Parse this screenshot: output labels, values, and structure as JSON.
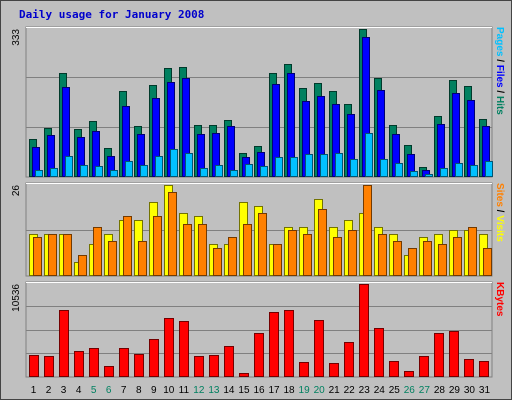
{
  "chart_data": {
    "type": "bar",
    "title": "Daily usage for January 2008",
    "categories": [
      "1",
      "2",
      "3",
      "4",
      "5",
      "6",
      "7",
      "8",
      "9",
      "10",
      "11",
      "12",
      "13",
      "14",
      "15",
      "16",
      "17",
      "18",
      "19",
      "20",
      "21",
      "22",
      "23",
      "24",
      "25",
      "26",
      "27",
      "28",
      "29",
      "30",
      "31"
    ],
    "weekend_days": [
      "5",
      "6",
      "12",
      "13",
      "19",
      "20",
      "26",
      "27"
    ],
    "colors": {
      "background": "#C0C0C0",
      "title": "#0000CC",
      "pages": "#00C0FF",
      "files": "#0000FF",
      "hits": "#008060",
      "visits": "#FFFF00",
      "sites": "#FF8000",
      "kbytes": "#FF0000",
      "weekend_label": "#008060",
      "weekday_label": "#000000"
    },
    "panels": [
      {
        "max_label": "333",
        "ymax": 333,
        "legend": [
          {
            "text": "Pages",
            "color": "#00C0FF"
          },
          {
            "text": " / ",
            "color": "#000000"
          },
          {
            "text": "Files",
            "color": "#0000FF"
          },
          {
            "text": " / ",
            "color": "#000000"
          },
          {
            "text": "Hits",
            "color": "#008060"
          }
        ],
        "series": [
          {
            "name": "Hits",
            "color": "#008060",
            "values": [
              85,
              111,
              235,
              108,
              125,
              66,
              193,
              115,
              208,
              245,
              248,
              118,
              117,
              129,
              53,
              69,
              234,
              254,
              200,
              212,
              193,
              164,
              333,
              223,
              118,
              71,
              23,
              137,
              218,
              205,
              131
            ]
          },
          {
            "name": "Files",
            "color": "#0000FF",
            "values": [
              67,
              95,
              202,
              89,
              104,
              47,
              160,
              96,
              178,
              214,
              222,
              97,
              98,
              114,
              44,
              57,
              210,
              233,
              172,
              183,
              164,
              141,
              315,
              196,
              96,
              52,
              15,
              120,
              188,
              174,
              115
            ]
          },
          {
            "name": "Pages",
            "color": "#00C0FF",
            "values": [
              15,
              20,
              47,
              28,
              24,
              15,
              35,
              27,
              48,
              63,
              53,
              20,
              27,
              16,
              30,
              24,
              46,
              46,
              51,
              51,
              53,
              41,
              99,
              40,
              32,
              13,
              7,
              20,
              32,
              28,
              35
            ]
          }
        ]
      },
      {
        "max_label": "26",
        "ymax": 26,
        "legend": [
          {
            "text": "Sites",
            "color": "#FF8000"
          },
          {
            "text": " / ",
            "color": "#000000"
          },
          {
            "text": "Visits",
            "color": "#FFFF00"
          }
        ],
        "series": [
          {
            "name": "Visits",
            "color": "#FFFF00",
            "values": [
              12,
              12,
              12,
              4,
              9,
              12,
              16,
              16,
              21,
              26,
              18,
              17,
              9,
              9,
              21,
              20,
              9,
              14,
              14,
              22,
              14,
              16,
              18,
              14,
              12,
              6,
              11,
              12,
              13,
              13,
              12
            ]
          },
          {
            "name": "Sites",
            "color": "#FF8000",
            "values": [
              11,
              12,
              12,
              6,
              14,
              10,
              17,
              10,
              17,
              24,
              15,
              15,
              8,
              11,
              15,
              18,
              9,
              13,
              12,
              19,
              11,
              13,
              26,
              12,
              10,
              8,
              10,
              9,
              11,
              14,
              8
            ]
          }
        ]
      },
      {
        "max_label": "10536",
        "ymax": 10536,
        "legend": [
          {
            "text": "KBytes",
            "color": "#FF0000"
          }
        ],
        "series": [
          {
            "name": "KBytes",
            "color": "#FF0000",
            "values": [
              2500,
              2400,
              7600,
              3000,
              3300,
              1300,
              3300,
              2600,
              4300,
              6700,
              6400,
              2400,
              2500,
              3500,
              400,
              5000,
              7400,
              7600,
              1700,
              6500,
              1600,
              4000,
              10536,
              5600,
              1800,
              700,
              2400,
              5000,
              5200,
              2000,
              1800
            ]
          }
        ]
      }
    ]
  }
}
